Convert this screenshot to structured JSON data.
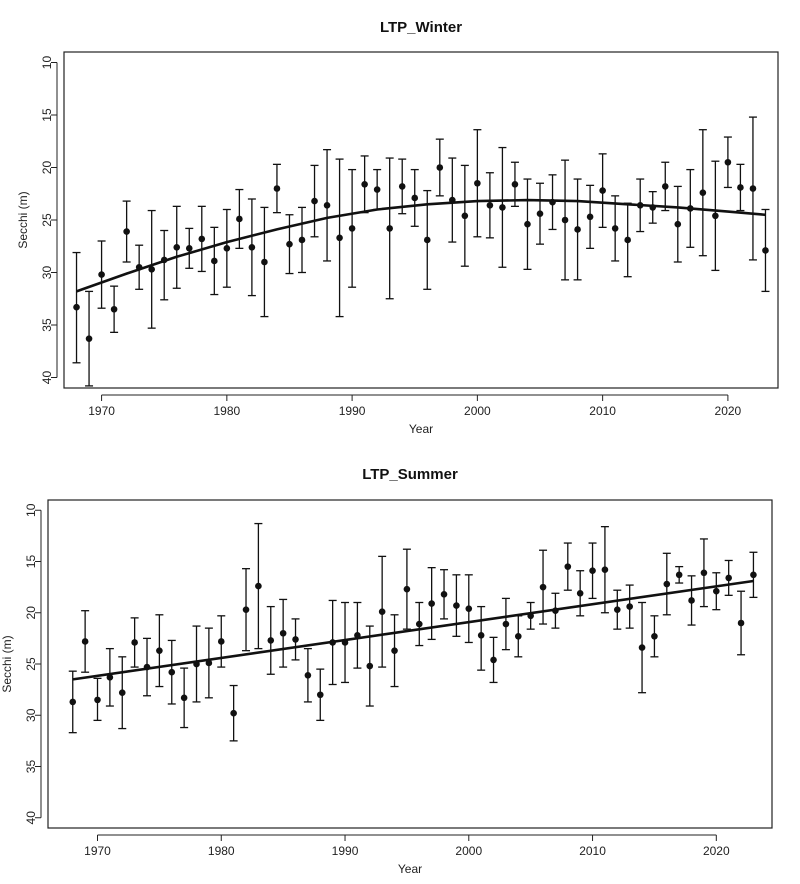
{
  "chart_data": [
    {
      "type": "scatter",
      "title": "LTP_Winter",
      "xlabel": "Year",
      "ylabel": "Secchi (m)",
      "xlim": [
        1967,
        2024
      ],
      "ylim": [
        41,
        9
      ],
      "y_inverted": true,
      "x_ticks": [
        1970,
        1980,
        1990,
        2000,
        2010,
        2020
      ],
      "y_ticks": [
        10,
        15,
        20,
        25,
        30,
        35,
        40
      ],
      "grid": false,
      "legend": "none",
      "trend": "loess",
      "series": [
        {
          "x": [
            1968,
            1969,
            1970,
            1971,
            1972,
            1973,
            1974,
            1975,
            1976,
            1977,
            1978,
            1979,
            1980,
            1981,
            1982,
            1983,
            1984,
            1985,
            1986,
            1987,
            1988,
            1989,
            1990,
            1991,
            1992,
            1993,
            1994,
            1995,
            1996,
            1997,
            1998,
            1999,
            2000,
            2001,
            2002,
            2003,
            2004,
            2005,
            2006,
            2007,
            2008,
            2009,
            2010,
            2011,
            2012,
            2013,
            2014,
            2015,
            2016,
            2017,
            2018,
            2019,
            2020,
            2021,
            2022,
            2023
          ],
          "y": [
            33.3,
            36.3,
            30.2,
            33.5,
            26.1,
            29.5,
            29.7,
            28.8,
            27.6,
            27.7,
            26.8,
            28.9,
            27.7,
            24.9,
            27.6,
            29.0,
            22.0,
            27.3,
            26.9,
            23.2,
            23.6,
            26.7,
            25.8,
            21.6,
            22.1,
            25.8,
            21.8,
            22.9,
            26.9,
            20.0,
            23.1,
            24.6,
            21.5,
            23.6,
            23.8,
            21.6,
            25.4,
            24.4,
            23.3,
            25.0,
            25.9,
            24.7,
            22.2,
            25.8,
            26.9,
            23.6,
            23.8,
            21.8,
            25.4,
            23.9,
            22.4,
            24.6,
            19.5,
            21.9,
            22.0,
            27.9
          ],
          "err_high": [
            28.1,
            31.8,
            27.0,
            31.3,
            23.2,
            27.4,
            24.1,
            26.0,
            23.7,
            25.8,
            23.7,
            25.7,
            24.0,
            22.1,
            23.0,
            23.8,
            19.7,
            24.5,
            23.8,
            19.8,
            18.3,
            19.2,
            20.2,
            18.9,
            20.2,
            19.1,
            19.2,
            20.2,
            22.2,
            17.3,
            19.1,
            19.8,
            16.4,
            20.5,
            18.1,
            19.5,
            21.1,
            21.5,
            20.7,
            19.3,
            21.1,
            21.7,
            18.7,
            22.7,
            23.4,
            21.1,
            22.3,
            19.5,
            21.8,
            20.2,
            16.4,
            19.4,
            17.1,
            19.7,
            15.2,
            24.0
          ],
          "err_low": [
            38.6,
            40.8,
            33.4,
            35.7,
            29.0,
            31.6,
            35.3,
            32.6,
            31.5,
            29.6,
            29.9,
            32.1,
            31.4,
            27.7,
            32.2,
            34.2,
            24.3,
            30.1,
            30.0,
            26.6,
            28.9,
            34.2,
            31.4,
            24.3,
            24.0,
            32.5,
            24.4,
            25.6,
            31.6,
            22.7,
            27.1,
            29.4,
            26.6,
            26.7,
            29.5,
            23.7,
            29.7,
            27.3,
            25.9,
            30.7,
            30.7,
            27.7,
            25.7,
            28.9,
            30.4,
            26.1,
            25.3,
            24.1,
            29.0,
            27.6,
            28.4,
            29.8,
            21.9,
            24.1,
            28.8,
            31.8
          ],
          "trend_x": [
            1968,
            1972,
            1976,
            1980,
            1984,
            1988,
            1992,
            1996,
            2000,
            2004,
            2008,
            2012,
            2016,
            2020,
            2023
          ],
          "trend_y": [
            31.8,
            30.1,
            28.5,
            27.1,
            25.9,
            24.8,
            24.0,
            23.5,
            23.2,
            23.1,
            23.2,
            23.5,
            23.8,
            24.2,
            24.5
          ]
        }
      ]
    },
    {
      "type": "scatter",
      "title": "LTP_Summer",
      "xlabel": "Year",
      "ylabel": "Secchi (m)",
      "xlim": [
        1966,
        2024.5
      ],
      "ylim": [
        41,
        9
      ],
      "y_inverted": true,
      "x_ticks": [
        1970,
        1980,
        1990,
        2000,
        2010,
        2020
      ],
      "y_ticks": [
        10,
        15,
        20,
        25,
        30,
        35,
        40
      ],
      "grid": false,
      "legend": "none",
      "trend": "linear",
      "series": [
        {
          "x": [
            1968,
            1969,
            1970,
            1971,
            1972,
            1973,
            1974,
            1975,
            1976,
            1977,
            1978,
            1979,
            1980,
            1981,
            1982,
            1983,
            1984,
            1985,
            1986,
            1987,
            1988,
            1989,
            1990,
            1991,
            1992,
            1993,
            1994,
            1995,
            1996,
            1997,
            1998,
            1999,
            2000,
            2001,
            2002,
            2003,
            2004,
            2005,
            2006,
            2007,
            2008,
            2009,
            2010,
            2011,
            2012,
            2013,
            2014,
            2015,
            2016,
            2017,
            2018,
            2019,
            2020,
            2021,
            2022,
            2023
          ],
          "y": [
            28.7,
            22.8,
            28.5,
            26.3,
            27.8,
            22.9,
            25.3,
            23.7,
            25.8,
            28.3,
            25.0,
            24.9,
            22.8,
            29.8,
            19.7,
            17.4,
            22.7,
            22.0,
            22.6,
            26.1,
            28.0,
            22.9,
            22.9,
            22.2,
            25.2,
            19.9,
            23.7,
            17.7,
            21.1,
            19.1,
            18.2,
            19.3,
            19.6,
            22.2,
            24.6,
            21.1,
            22.3,
            20.3,
            17.5,
            19.8,
            15.5,
            18.1,
            15.9,
            15.8,
            19.7,
            19.4,
            23.4,
            22.3,
            17.2,
            16.3,
            18.8,
            16.1,
            17.9,
            16.6,
            21.0,
            16.3
          ],
          "err_high": [
            25.7,
            19.8,
            26.4,
            23.5,
            24.3,
            20.5,
            22.5,
            20.2,
            22.7,
            25.4,
            21.3,
            21.5,
            20.3,
            27.1,
            15.7,
            11.3,
            19.4,
            18.7,
            20.6,
            23.5,
            25.5,
            18.8,
            19.0,
            19.0,
            21.3,
            14.5,
            20.2,
            13.8,
            19.0,
            15.6,
            15.8,
            16.3,
            16.3,
            19.4,
            22.4,
            18.6,
            20.3,
            19.0,
            13.9,
            18.1,
            13.2,
            15.9,
            13.2,
            11.6,
            17.8,
            17.3,
            19.0,
            20.3,
            14.2,
            15.5,
            16.4,
            12.8,
            16.1,
            14.9,
            17.9,
            14.1
          ],
          "err_low": [
            31.7,
            25.8,
            30.5,
            29.1,
            31.3,
            25.3,
            28.1,
            27.2,
            28.9,
            31.2,
            28.7,
            28.3,
            25.3,
            32.5,
            23.7,
            23.5,
            26.0,
            25.3,
            24.6,
            28.7,
            30.5,
            27.0,
            26.8,
            25.4,
            29.1,
            25.3,
            27.2,
            21.6,
            23.2,
            22.6,
            20.6,
            22.3,
            22.9,
            25.6,
            26.8,
            23.6,
            24.3,
            21.6,
            21.1,
            21.5,
            17.8,
            20.3,
            18.6,
            20.0,
            21.6,
            21.5,
            27.8,
            24.3,
            20.2,
            17.1,
            21.2,
            19.4,
            19.7,
            18.3,
            24.1,
            18.5
          ],
          "trend_x": [
            1968,
            2023
          ],
          "trend_y": [
            26.5,
            16.9
          ]
        }
      ]
    }
  ]
}
